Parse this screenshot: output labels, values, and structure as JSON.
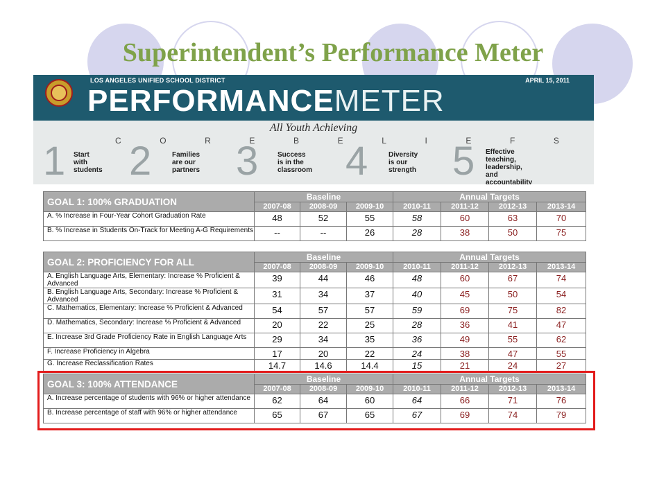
{
  "slide_title": "Superintendent’s Performance Meter",
  "banner": {
    "district": "LOS ANGELES UNIFIED SCHOOL DISTRICT",
    "date": "APRIL 15, 2011",
    "title_bold": "PERFORMANCE",
    "title_light": "METER",
    "tagline": "All Youth Achieving",
    "core_beliefs_letters": [
      "C",
      "O",
      "R",
      "E",
      "B",
      "E",
      "L",
      "I",
      "E",
      "F",
      "S"
    ],
    "beliefs": [
      {
        "number": "1",
        "text": "Start\nwith\nstudents"
      },
      {
        "number": "2",
        "text": "Families\nare our\npartners"
      },
      {
        "number": "3",
        "text": "Success\nis in the\nclassroom"
      },
      {
        "number": "4",
        "text": "Diversity\nis our\nstrength"
      },
      {
        "number": "5",
        "text": "Effective teaching,\nleadership, and\naccountability are the\nkeys to our success"
      }
    ]
  },
  "table_headers": {
    "baseline": "Baseline",
    "annual_targets": "Annual Targets",
    "years": [
      "2007-08",
      "2008-09",
      "2009-10",
      "2010-11",
      "2011-12",
      "2012-13",
      "2013-14"
    ]
  },
  "goals": [
    {
      "title": "GOAL 1: 100% GRADUATION",
      "rows": [
        {
          "label": "A. % Increase in Four-Year Cohort Graduation Rate",
          "values": [
            "48",
            "52",
            "55",
            "58",
            "60",
            "63",
            "70"
          ]
        },
        {
          "label": "B. % Increase in Students On-Track for Meeting A-G Requirements",
          "values": [
            "--",
            "--",
            "26",
            "28",
            "38",
            "50",
            "75"
          ]
        }
      ]
    },
    {
      "title": "GOAL 2:  PROFICIENCY FOR ALL",
      "rows": [
        {
          "label": "A. English Language Arts, Elementary: Increase % Proficient & Advanced",
          "values": [
            "39",
            "44",
            "46",
            "48",
            "60",
            "67",
            "74"
          ]
        },
        {
          "label": "B. English Language Arts, Secondary: Increase % Proficient & Advanced",
          "values": [
            "31",
            "34",
            "37",
            "40",
            "45",
            "50",
            "54"
          ]
        },
        {
          "label": "C. Mathematics, Elementary: Increase % Proficient & Advanced",
          "values": [
            "54",
            "57",
            "57",
            "59",
            "69",
            "75",
            "82"
          ]
        },
        {
          "label": "D. Mathematics, Secondary: Increase % Proficient & Advanced",
          "values": [
            "20",
            "22",
            "25",
            "28",
            "36",
            "41",
            "47"
          ]
        },
        {
          "label": "E. Increase 3rd Grade Proficiency Rate in English Language Arts",
          "values": [
            "29",
            "34",
            "35",
            "36",
            "49",
            "55",
            "62"
          ]
        },
        {
          "label": "F. Increase Proficiency in Algebra",
          "values": [
            "17",
            "20",
            "22",
            "24",
            "38",
            "47",
            "55"
          ]
        },
        {
          "label": "G. Increase Reclassification Rates",
          "values": [
            "14.7",
            "14.6",
            "14.4",
            "15",
            "21",
            "24",
            "27"
          ]
        }
      ]
    },
    {
      "title": "GOAL 3: 100% ATTENDANCE",
      "rows": [
        {
          "label": "A. Increase percentage of students with 96% or higher attendance",
          "values": [
            "62",
            "64",
            "60",
            "64",
            "66",
            "71",
            "76"
          ]
        },
        {
          "label": "B. Increase percentage of staff with 96% or higher attendance",
          "values": [
            "65",
            "67",
            "65",
            "67",
            "69",
            "74",
            "79"
          ]
        }
      ]
    }
  ],
  "colors": {
    "title_green": "#7fa24a",
    "banner_teal": "#1e5a6e",
    "header_gray": "#ababab",
    "target_red": "#8a1f1f",
    "highlight_red": "#e31b1b"
  }
}
